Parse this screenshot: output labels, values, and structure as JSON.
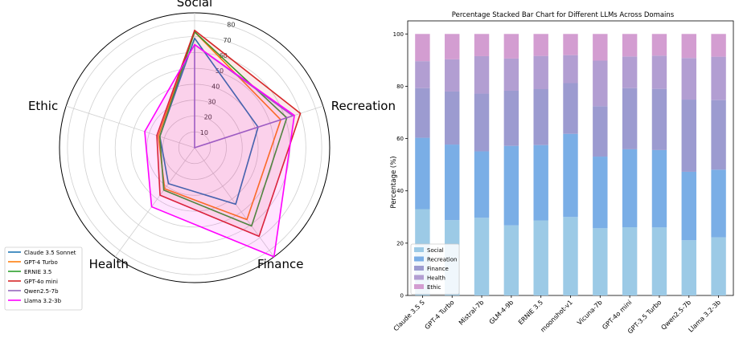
{
  "chart_data": [
    {
      "type": "radar",
      "title": "",
      "axes": [
        "Social",
        "Recreation",
        "Finance",
        "Health",
        "Ethic"
      ],
      "radial_ticks": [
        10,
        20,
        30,
        40,
        50,
        60,
        70,
        80
      ],
      "rlim": [
        0,
        85
      ],
      "grid": true,
      "legend": "bottom-left",
      "series": [
        {
          "name": "Claude 3.5 Sonnet",
          "color": "#1f77b4",
          "fill": false,
          "values": [
            69,
            42,
            44,
            28,
            23
          ]
        },
        {
          "name": "GPT-4 Turbo",
          "color": "#ff7f0e",
          "fill": false,
          "values": [
            73,
            57,
            56,
            32,
            24
          ]
        },
        {
          "name": "ERNIE 3.5",
          "color": "#2ca02c",
          "fill": false,
          "values": [
            73,
            61,
            61,
            33,
            23
          ]
        },
        {
          "name": "GPT-4o mini",
          "color": "#d62728",
          "fill": true,
          "values": [
            74,
            70,
            69,
            37,
            25
          ]
        },
        {
          "name": "Qwen2.5-7b",
          "color": "#9467bd",
          "fill": false,
          "values": [
            65,
            65,
            0,
            0,
            0
          ]
        },
        {
          "name": "Llama 3.2-3b",
          "color": "#ff00ff",
          "fill": true,
          "values": [
            65,
            66,
            85,
            46,
            33
          ]
        }
      ]
    },
    {
      "type": "bar",
      "stacked": true,
      "title": "Percentage Stacked Bar Chart for Different LLMs Across Domains",
      "xlabel": "",
      "ylabel": "Percentage (%)",
      "ylim": [
        0,
        105
      ],
      "yticks": [
        0,
        20,
        40,
        60,
        80,
        100
      ],
      "legend": "bottom-left",
      "categories": [
        "Claude 3.5 S",
        "GPT-4 Turbo",
        "Mistral-7b",
        "GLM-4-9b",
        "ERNIE 3.5",
        "moonshot-v1",
        "Vicuna-7b",
        "GPT-4o mini",
        "GPT-3.5 Turbo",
        "Qwen2.5-7b",
        "Llama 3.2-3b"
      ],
      "series": [
        {
          "name": "Social",
          "color": "#9ccae6",
          "values": [
            33,
            28.8,
            29.7,
            26.8,
            28.7,
            30,
            25.7,
            26.1,
            26,
            21.1,
            22.2
          ]
        },
        {
          "name": "Recreation",
          "color": "#7aaee6",
          "values": [
            27.3,
            28.9,
            25.4,
            30.4,
            28.8,
            31.8,
            27.4,
            29.8,
            29.6,
            26.2,
            25.9
          ]
        },
        {
          "name": "Finance",
          "color": "#9c9bd0",
          "values": [
            19,
            20.3,
            22.1,
            21.1,
            21.4,
            19.4,
            19.3,
            23.4,
            23.4,
            27.6,
            26.6
          ]
        },
        {
          "name": "Health",
          "color": "#b29ed2",
          "values": [
            10.3,
            12.3,
            14.3,
            12.3,
            12.7,
            10.7,
            17.4,
            12.1,
            12.7,
            15.9,
            16.6
          ]
        },
        {
          "name": "Ethic",
          "color": "#d39dd1",
          "values": [
            10.4,
            9.7,
            8.5,
            9.4,
            8.4,
            8.1,
            10.2,
            8.6,
            8.3,
            9.2,
            8.7
          ]
        }
      ]
    }
  ]
}
